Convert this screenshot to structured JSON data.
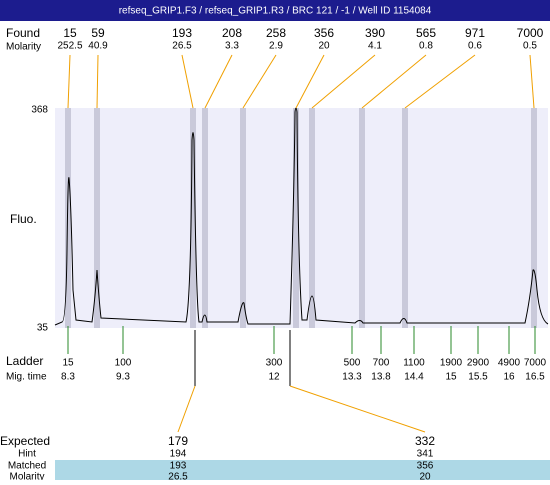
{
  "header": {
    "title": "refseq_GRIP1.F3 / refseq_GRIP1.R3 / BRC 121 / -1 / Well ID 1154084"
  },
  "found": {
    "label": "Found",
    "molarity_label": "Molarity",
    "peaks": [
      {
        "size": 15,
        "molarity": 252.5
      },
      {
        "size": 59,
        "molarity": 40.9
      },
      {
        "size": 193,
        "molarity": 26.5
      },
      {
        "size": 208,
        "molarity": 3.3
      },
      {
        "size": 258,
        "molarity": 2.9
      },
      {
        "size": 356,
        "molarity": 20
      },
      {
        "size": 390,
        "molarity": 4.1
      },
      {
        "size": 565,
        "molarity": 0.8
      },
      {
        "size": 971,
        "molarity": 0.6
      },
      {
        "size": 7000,
        "molarity": 0.5
      }
    ]
  },
  "plot": {
    "y_label": "Fluo.",
    "y_top": 368,
    "y_bottom": 35
  },
  "ladder": {
    "label": "Ladder",
    "time_label": "Mig. time",
    "markers": [
      {
        "size": 15,
        "time": 8.3
      },
      {
        "size": 100,
        "time": 9.3
      },
      {
        "size": 300,
        "time": 12
      },
      {
        "size": 500,
        "time": 13.3
      },
      {
        "size": 700,
        "time": 13.8
      },
      {
        "size": 1100,
        "time": 14.4
      },
      {
        "size": 1900,
        "time": 15
      },
      {
        "size": 2900,
        "time": 15.5
      },
      {
        "size": 4900,
        "time": 16
      },
      {
        "size": 7000,
        "time": 16.5
      }
    ]
  },
  "expected": {
    "label": "Expected",
    "hint_label": "Hint",
    "matched_label": "Matched",
    "molarity_label": "Molarity",
    "items": [
      {
        "expected": 179,
        "hint": 194,
        "matched": 193,
        "molarity": 26.5
      },
      {
        "expected": 332,
        "hint": 341,
        "matched": 356,
        "molarity": 20
      }
    ]
  }
}
